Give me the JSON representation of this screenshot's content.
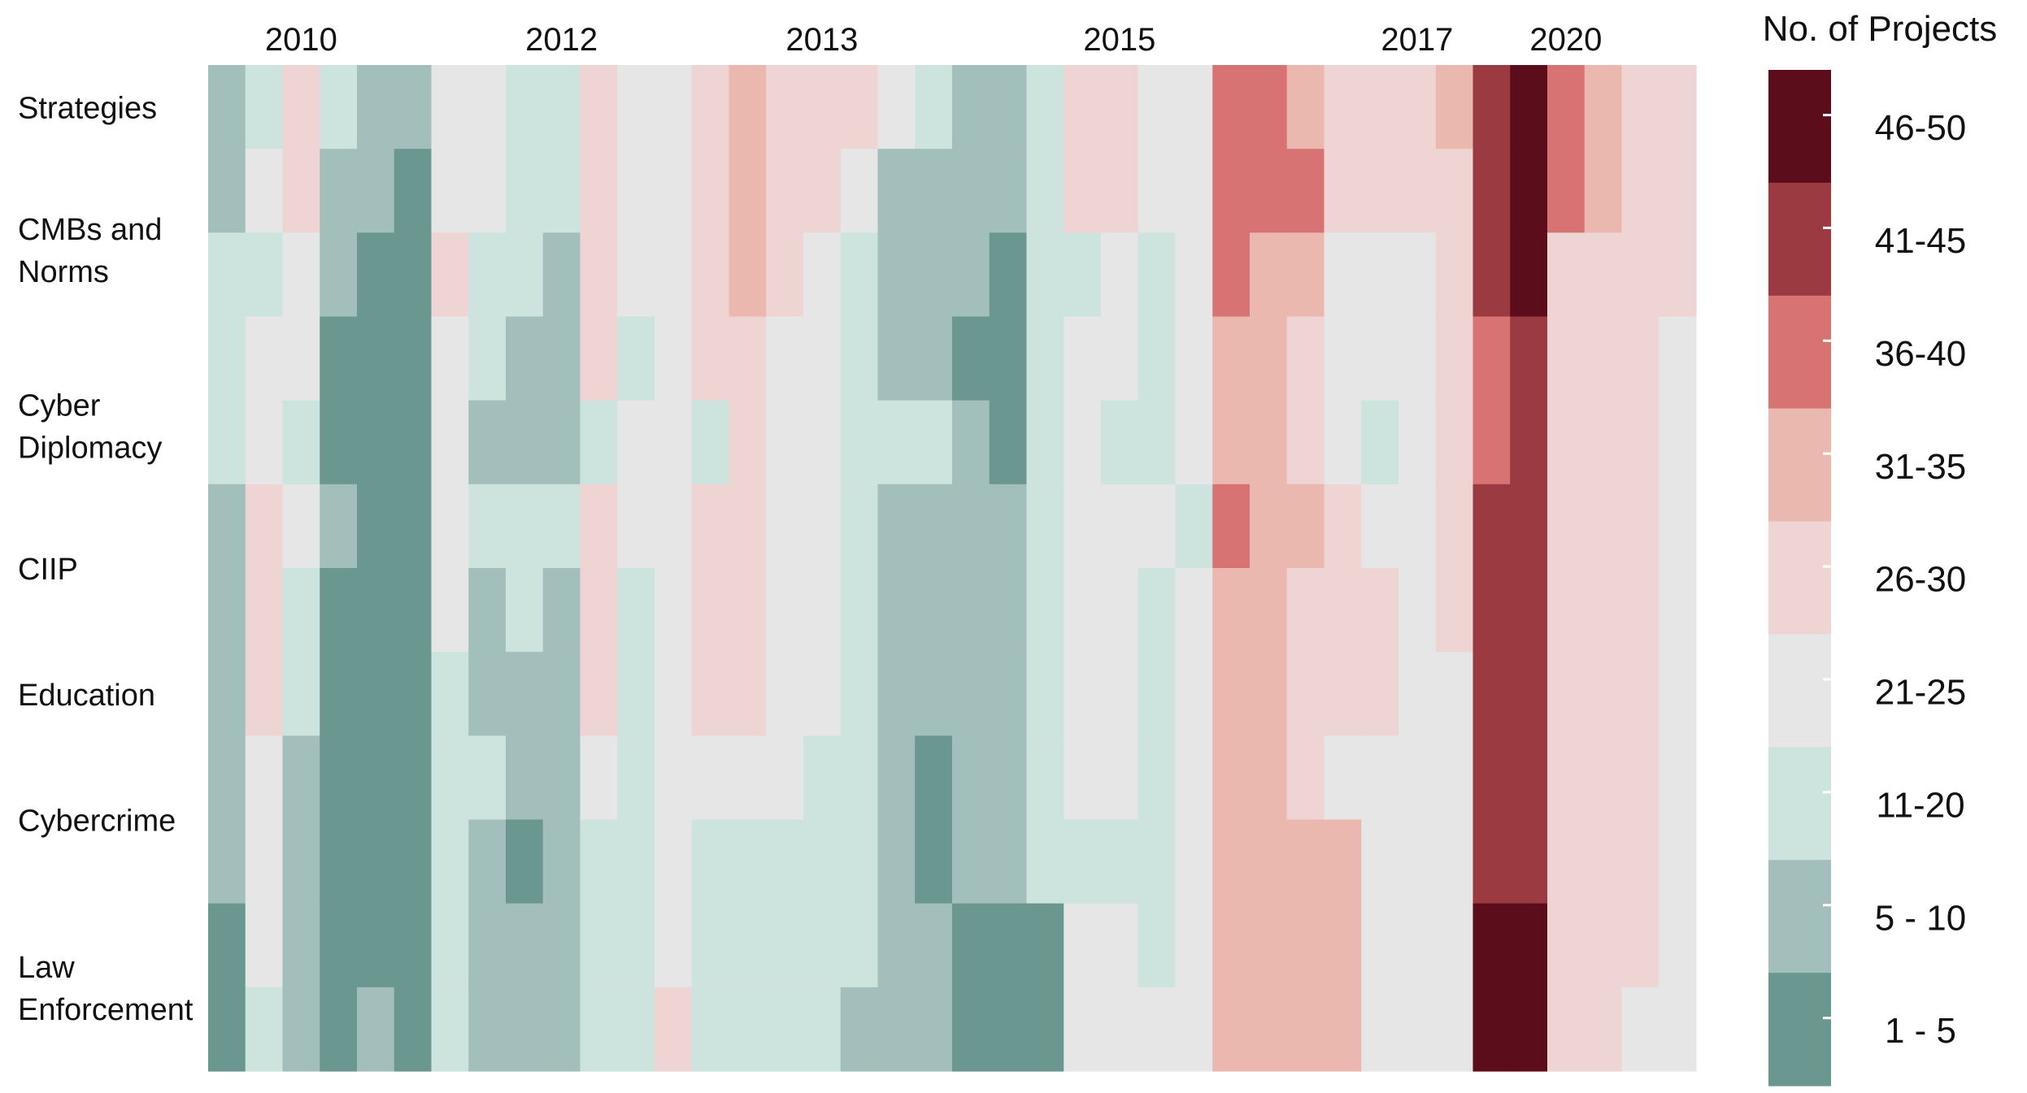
{
  "chart_data": {
    "type": "heatmap",
    "title": "",
    "xlabel": "",
    "ylabel": "",
    "x_tick_labels": [
      {
        "label": "2010",
        "col": 2
      },
      {
        "label": "2012",
        "col": 9
      },
      {
        "label": "2013",
        "col": 16
      },
      {
        "label": "2015",
        "col": 24
      },
      {
        "label": "2017",
        "col": 32
      },
      {
        "label": "2020",
        "col": 36
      }
    ],
    "y_labels": [
      {
        "lines": [
          "Strategies"
        ],
        "row": 0.5
      },
      {
        "lines": [
          "CMBs and",
          "Norms"
        ],
        "row": 2.2
      },
      {
        "lines": [
          "Cyber",
          "Diplomacy"
        ],
        "row": 4.3
      },
      {
        "lines": [
          "CIIP"
        ],
        "row": 6.0
      },
      {
        "lines": [
          "Education"
        ],
        "row": 7.5
      },
      {
        "lines": [
          "Cybercrime"
        ],
        "row": 9.0
      },
      {
        "lines": [
          "Law",
          "Enforcement"
        ],
        "row": 11.0
      }
    ],
    "legend": {
      "title": "No. of Projects",
      "placement": "right",
      "bins": [
        {
          "label": "46-50",
          "color": "#5c0d1c"
        },
        {
          "label": "41-45",
          "color": "#9b3a40"
        },
        {
          "label": "36-40",
          "color": "#d87374"
        },
        {
          "label": "31-35",
          "color": "#ebb8b0"
        },
        {
          "label": "26-30",
          "color": "#efd4d4"
        },
        {
          "label": "21-25",
          "color": "#e6e6e6"
        },
        {
          "label": "11-20",
          "color": "#cde3dd"
        },
        {
          "label": "5 - 10",
          "color": "#a3bfbb"
        },
        {
          "label": "1 - 5",
          "color": "#6a9890"
        }
      ]
    },
    "num_cols": 40,
    "num_rows": 12,
    "columns": [
      [
        1,
        1,
        2,
        2,
        2,
        1,
        1,
        1,
        1,
        1,
        0,
        0
      ],
      [
        2,
        3,
        2,
        3,
        3,
        4,
        4,
        4,
        3,
        3,
        3,
        2
      ],
      [
        4,
        4,
        3,
        3,
        2,
        3,
        2,
        2,
        1,
        1,
        1,
        1
      ],
      [
        2,
        1,
        1,
        0,
        0,
        1,
        0,
        0,
        0,
        0,
        0,
        0
      ],
      [
        1,
        1,
        0,
        0,
        0,
        0,
        0,
        0,
        0,
        0,
        0,
        1
      ],
      [
        1,
        0,
        0,
        0,
        0,
        0,
        0,
        0,
        0,
        0,
        0,
        0
      ],
      [
        3,
        3,
        4,
        3,
        3,
        3,
        3,
        2,
        2,
        2,
        2,
        2
      ],
      [
        3,
        3,
        2,
        2,
        1,
        2,
        1,
        1,
        2,
        1,
        1,
        1
      ],
      [
        2,
        2,
        2,
        1,
        1,
        2,
        2,
        1,
        1,
        0,
        1,
        1
      ],
      [
        2,
        2,
        1,
        1,
        1,
        2,
        1,
        1,
        1,
        1,
        1,
        1
      ],
      [
        4,
        4,
        4,
        4,
        2,
        4,
        4,
        4,
        3,
        2,
        2,
        2
      ],
      [
        3,
        3,
        3,
        2,
        3,
        3,
        2,
        2,
        2,
        2,
        2,
        2
      ],
      [
        3,
        3,
        3,
        3,
        3,
        3,
        3,
        3,
        3,
        3,
        3,
        4
      ],
      [
        4,
        4,
        4,
        4,
        2,
        4,
        4,
        4,
        3,
        2,
        2,
        2
      ],
      [
        5,
        5,
        5,
        4,
        4,
        4,
        4,
        4,
        3,
        2,
        2,
        2
      ],
      [
        4,
        4,
        4,
        3,
        3,
        3,
        3,
        3,
        3,
        2,
        2,
        2
      ],
      [
        4,
        4,
        3,
        3,
        3,
        3,
        3,
        3,
        2,
        2,
        2,
        2
      ],
      [
        4,
        3,
        2,
        2,
        2,
        2,
        2,
        2,
        2,
        2,
        2,
        1
      ],
      [
        3,
        1,
        1,
        1,
        2,
        1,
        1,
        1,
        1,
        1,
        1,
        1
      ],
      [
        2,
        1,
        1,
        1,
        2,
        1,
        1,
        1,
        0,
        0,
        1,
        1
      ],
      [
        1,
        1,
        1,
        0,
        1,
        1,
        1,
        1,
        1,
        1,
        0,
        0
      ],
      [
        1,
        1,
        0,
        0,
        0,
        1,
        1,
        1,
        1,
        1,
        0,
        0
      ],
      [
        2,
        2,
        2,
        2,
        2,
        2,
        2,
        2,
        2,
        2,
        0,
        0
      ],
      [
        4,
        4,
        2,
        3,
        3,
        3,
        3,
        3,
        3,
        2,
        3,
        3
      ],
      [
        4,
        4,
        3,
        3,
        2,
        3,
        3,
        3,
        3,
        2,
        3,
        3
      ],
      [
        3,
        3,
        2,
        2,
        2,
        3,
        2,
        2,
        2,
        2,
        2,
        3
      ],
      [
        3,
        3,
        3,
        3,
        3,
        2,
        3,
        3,
        3,
        3,
        3,
        3
      ],
      [
        6,
        6,
        6,
        5,
        5,
        6,
        5,
        5,
        5,
        5,
        5,
        5
      ],
      [
        6,
        6,
        5,
        5,
        5,
        5,
        5,
        5,
        5,
        5,
        5,
        5
      ],
      [
        5,
        6,
        5,
        4,
        4,
        5,
        4,
        4,
        4,
        5,
        5,
        5
      ],
      [
        4,
        4,
        3,
        3,
        3,
        4,
        4,
        4,
        3,
        5,
        5,
        5
      ],
      [
        4,
        4,
        3,
        3,
        2,
        3,
        4,
        4,
        3,
        3,
        3,
        3
      ],
      [
        4,
        4,
        3,
        3,
        3,
        3,
        3,
        3,
        3,
        3,
        3,
        3
      ],
      [
        5,
        4,
        4,
        4,
        4,
        4,
        4,
        3,
        3,
        3,
        3,
        3
      ],
      [
        7,
        7,
        7,
        6,
        6,
        7,
        7,
        7,
        7,
        7,
        8,
        8
      ],
      [
        8,
        8,
        8,
        7,
        7,
        7,
        7,
        7,
        7,
        7,
        8,
        8
      ],
      [
        6,
        6,
        4,
        4,
        4,
        4,
        4,
        4,
        4,
        4,
        4,
        4
      ],
      [
        5,
        5,
        4,
        4,
        4,
        4,
        4,
        4,
        4,
        4,
        4,
        4
      ],
      [
        4,
        4,
        4,
        4,
        4,
        4,
        4,
        4,
        4,
        4,
        4,
        3
      ],
      [
        4,
        4,
        4,
        3,
        3,
        3,
        3,
        3,
        3,
        3,
        3,
        3
      ]
    ]
  }
}
